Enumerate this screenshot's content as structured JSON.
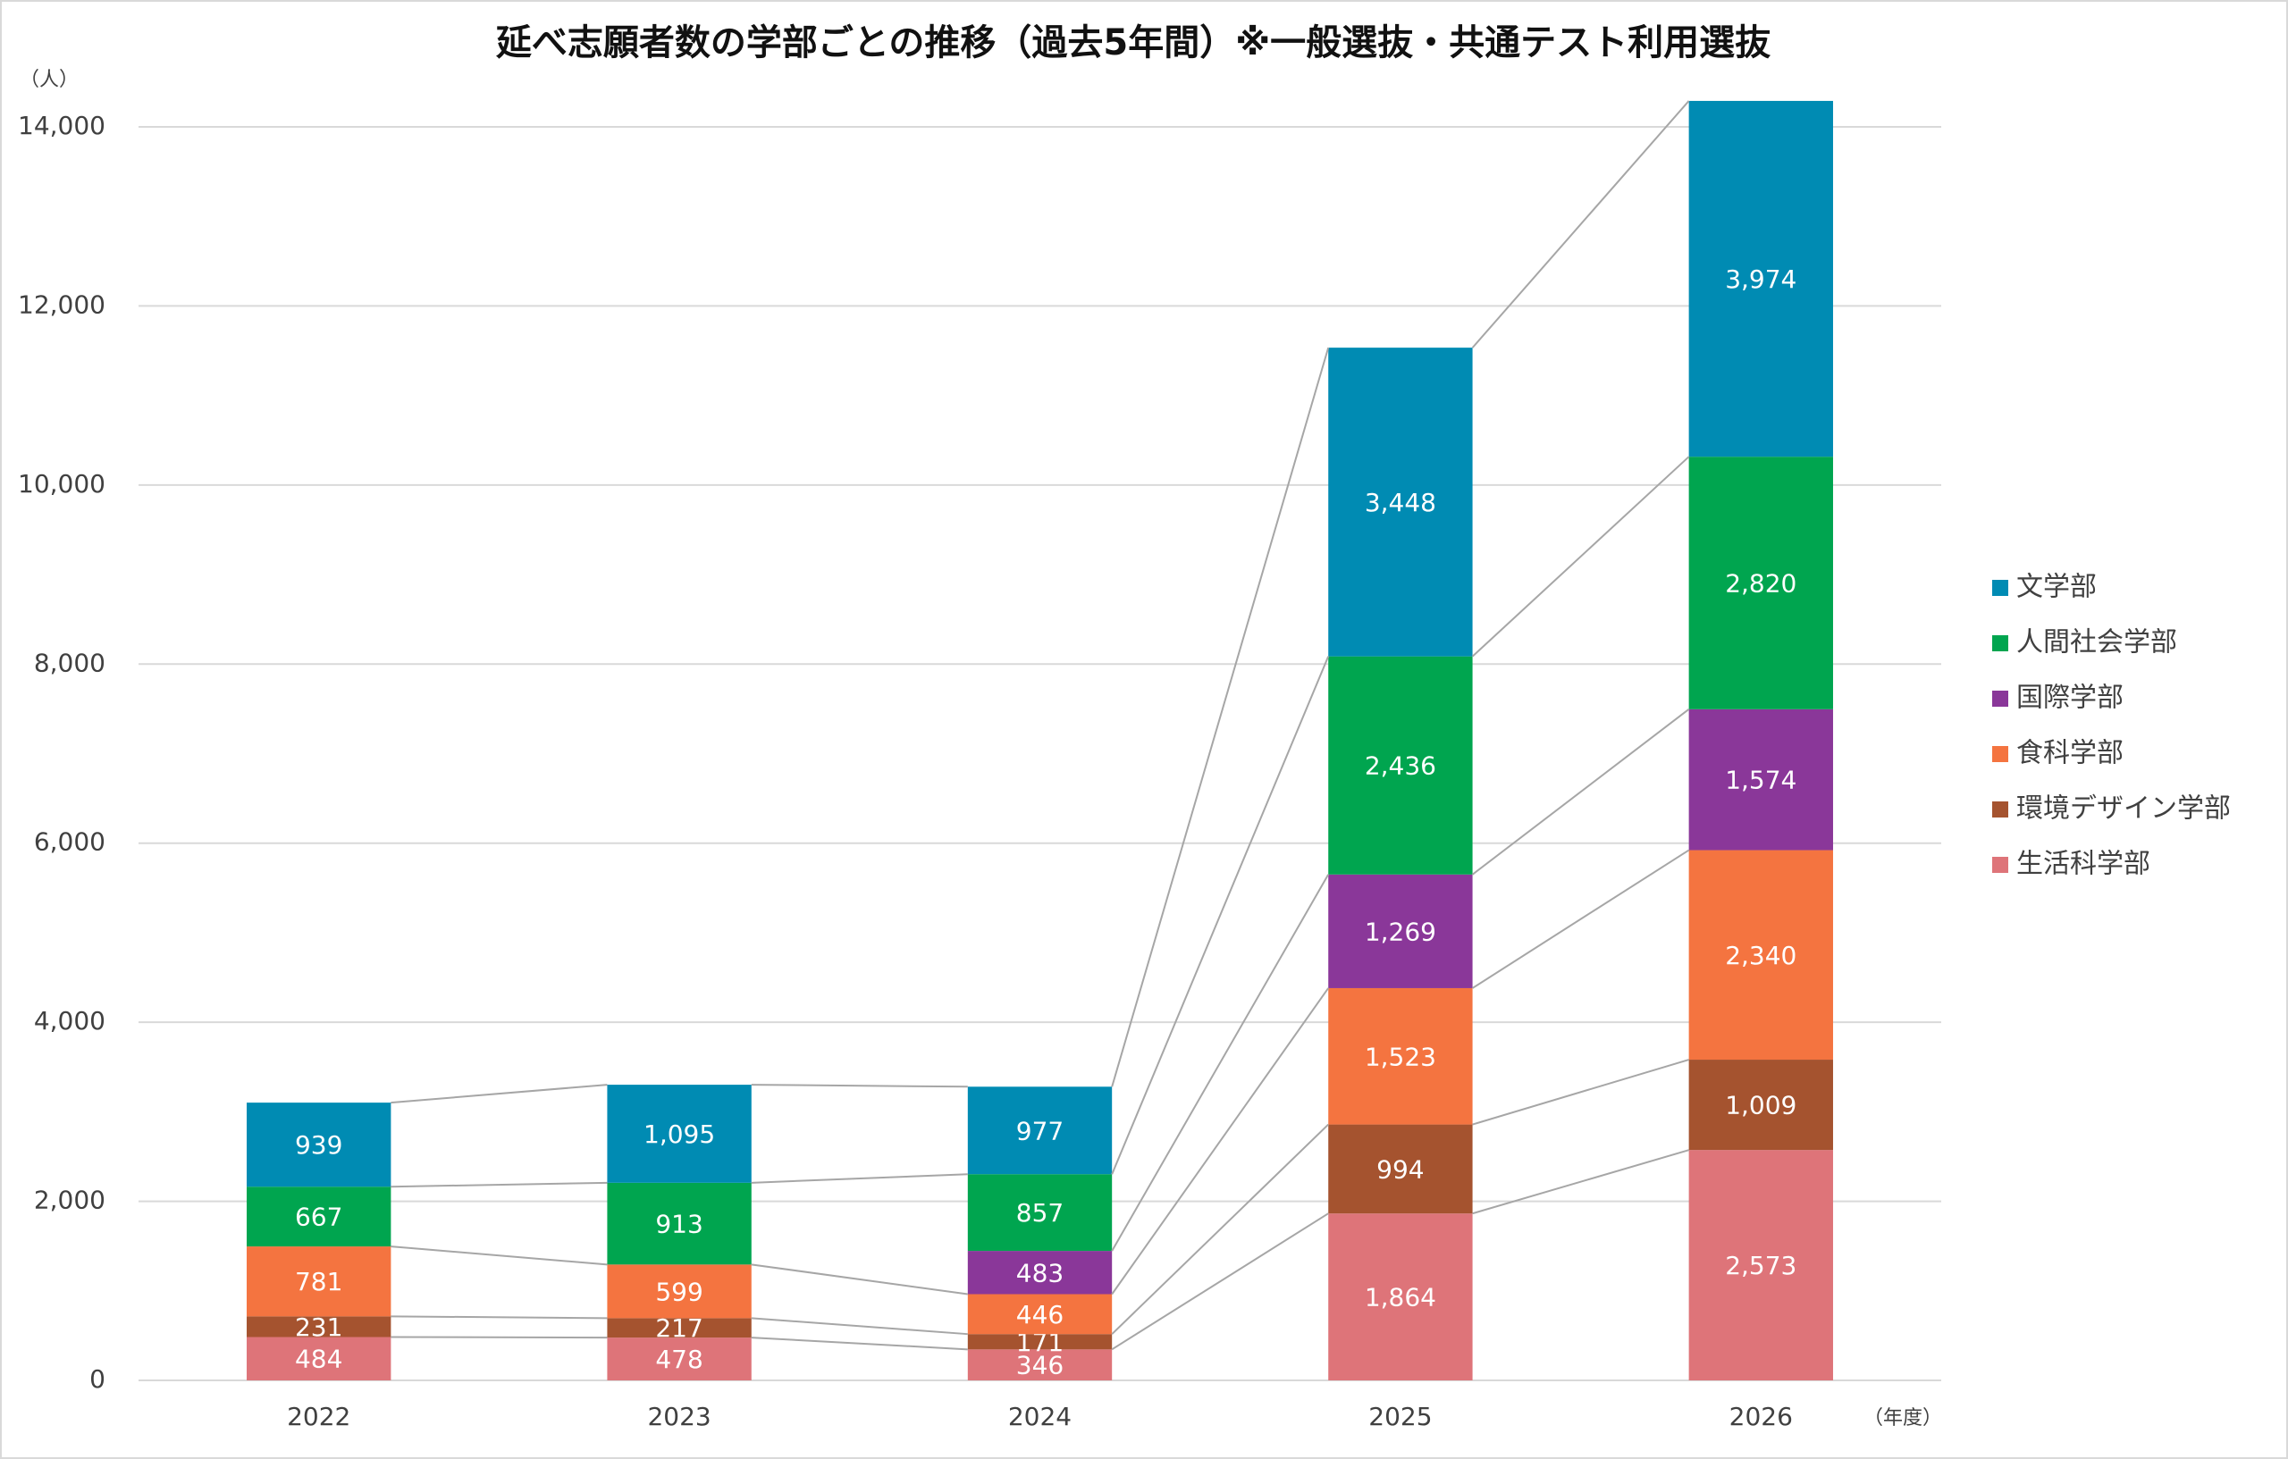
{
  "chart_data": {
    "type": "stacked_bar",
    "title": "延べ志願者数の学部ごとの推移（過去5年間）※一般選抜・共通テスト利用選抜",
    "ylabel": "（人）",
    "xlabel": "（年度）",
    "categories": [
      "2022",
      "2023",
      "2024",
      "2025",
      "2026"
    ],
    "ylim": [
      0,
      14000
    ],
    "yticks": [
      0,
      {
        "value": 2000,
        "label": "2,000"
      },
      {
        "value": 4000,
        "label": "4,000"
      },
      {
        "value": 6000,
        "label": "6,000"
      },
      {
        "value": 8000,
        "label": "8,000"
      },
      {
        "value": 10000,
        "label": "10,000"
      },
      {
        "value": 12000,
        "label": "12,000"
      },
      {
        "value": 14000,
        "label": "14,000"
      }
    ],
    "grid": true,
    "legend": "right",
    "series": [
      {
        "name": "生活科学部",
        "color": "#de7479",
        "values": [
          484,
          478,
          346,
          1864,
          2573
        ],
        "value_labels": [
          "484",
          "478",
          "346",
          "1,864",
          "2,573"
        ]
      },
      {
        "name": "環境デザイン学部",
        "color": "#a5532f",
        "values": [
          231,
          217,
          171,
          994,
          1009
        ],
        "value_labels": [
          "231",
          "217",
          "171",
          "994",
          "1,009"
        ]
      },
      {
        "name": "食科学部",
        "color": "#f47440",
        "values": [
          781,
          599,
          446,
          1523,
          2340
        ],
        "value_labels": [
          "781",
          "599",
          "446",
          "1,523",
          "2,340"
        ]
      },
      {
        "name": "国際学部",
        "color": "#8a3799",
        "values": [
          null,
          null,
          483,
          1269,
          1574
        ],
        "value_labels": [
          null,
          null,
          "483",
          "1,269",
          "1,574"
        ]
      },
      {
        "name": "人間社会学部",
        "color": "#00a54f",
        "values": [
          667,
          913,
          857,
          2436,
          2820
        ],
        "value_labels": [
          "667",
          "913",
          "857",
          "2,436",
          "2,820"
        ]
      },
      {
        "name": "文学部",
        "color": "#008bb3",
        "values": [
          939,
          1095,
          977,
          3448,
          3974
        ],
        "value_labels": [
          "939",
          "1,095",
          "977",
          "3,448",
          "3,974"
        ]
      }
    ]
  }
}
